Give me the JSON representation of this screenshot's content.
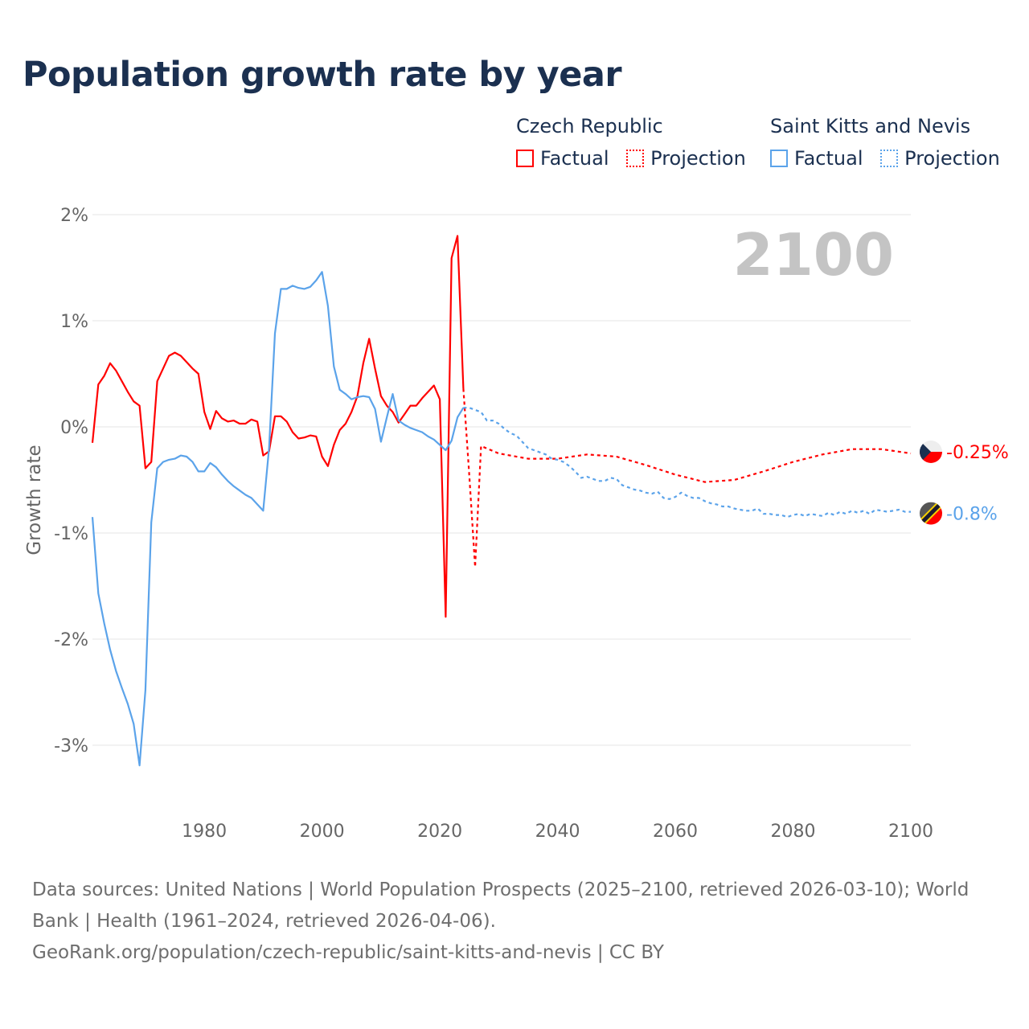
{
  "title": "Population growth rate by year",
  "legend": {
    "groups": [
      {
        "name": "Czech Republic",
        "factual": "Factual",
        "projection": "Projection",
        "color": "#ff0000"
      },
      {
        "name": "Saint Kitts and Nevis",
        "factual": "Factual",
        "projection": "Projection",
        "color": "#5ba3ea"
      }
    ]
  },
  "year_display": "2100",
  "footer": {
    "sources": "Data sources: United Nations | World Population Prospects (2025–2100, retrieved 2026-03-10); World Bank | Health (1961–2024, retrieved 2026-04-06).",
    "credit": "GeoRank.org/population/czech-republic/saint-kitts-and-nevis | CC BY"
  },
  "chart_data": {
    "type": "line",
    "title": "Population growth rate by year",
    "xlabel": "",
    "ylabel": "Growth rate",
    "xlim": [
      1961,
      2100
    ],
    "ylim": [
      -3.6,
      2.1
    ],
    "x_ticks": [
      1980,
      2000,
      2020,
      2040,
      2060,
      2080,
      2100
    ],
    "x_tick_labels": [
      "1980",
      "2000",
      "2020",
      "2040",
      "2060",
      "2080",
      "2100"
    ],
    "y_ticks": [
      2,
      1,
      0,
      -1,
      -2,
      -3
    ],
    "y_tick_labels": [
      "2%",
      "1%",
      "0%",
      "-1%",
      "-2%",
      "-3%"
    ],
    "grid": true,
    "legend_position": "top-right",
    "end_labels": [
      {
        "series": "Czech Republic",
        "label": "-0.25%",
        "value": -0.25
      },
      {
        "series": "Saint Kitts and Nevis",
        "label": "-0.8%",
        "value": -0.8
      }
    ],
    "series": [
      {
        "name": "Czech Republic - Factual",
        "color": "#ff0000",
        "style": "solid",
        "x_start": 1961,
        "values": [
          -0.15,
          0.4,
          0.48,
          0.6,
          0.53,
          0.43,
          0.33,
          0.24,
          0.2,
          -0.39,
          -0.33,
          0.43,
          0.55,
          0.67,
          0.7,
          0.67,
          0.61,
          0.55,
          0.5,
          0.14,
          -0.02,
          0.15,
          0.08,
          0.05,
          0.06,
          0.03,
          0.03,
          0.07,
          0.05,
          -0.27,
          -0.23,
          0.1,
          0.1,
          0.05,
          -0.05,
          -0.11,
          -0.1,
          -0.08,
          -0.09,
          -0.28,
          -0.37,
          -0.17,
          -0.03,
          0.03,
          0.14,
          0.29,
          0.6,
          0.83,
          0.55,
          0.29,
          0.2,
          0.14,
          0.04,
          0.12,
          0.2,
          0.2,
          0.27,
          0.33,
          0.39,
          0.26,
          -1.79,
          1.59,
          1.8,
          0.36
        ]
      },
      {
        "name": "Czech Republic - Projection",
        "color": "#ff0000",
        "style": "dotted",
        "x": [
          2024,
          2025,
          2026,
          2027,
          2030,
          2035,
          2040,
          2045,
          2050,
          2055,
          2060,
          2065,
          2070,
          2075,
          2080,
          2085,
          2090,
          2095,
          2100
        ],
        "values": [
          0.36,
          -0.45,
          -1.32,
          -0.18,
          -0.25,
          -0.3,
          -0.3,
          -0.26,
          -0.28,
          -0.36,
          -0.45,
          -0.52,
          -0.5,
          -0.42,
          -0.33,
          -0.26,
          -0.21,
          -0.21,
          -0.25
        ]
      },
      {
        "name": "Saint Kitts and Nevis - Factual",
        "color": "#5ba3ea",
        "style": "solid",
        "x_start": 1961,
        "values": [
          -0.85,
          -1.57,
          -1.85,
          -2.1,
          -2.3,
          -2.46,
          -2.61,
          -2.8,
          -3.19,
          -2.48,
          -0.9,
          -0.39,
          -0.33,
          -0.31,
          -0.3,
          -0.27,
          -0.28,
          -0.33,
          -0.42,
          -0.42,
          -0.34,
          -0.38,
          -0.45,
          -0.51,
          -0.56,
          -0.6,
          -0.64,
          -0.67,
          -0.73,
          -0.79,
          -0.2,
          0.88,
          1.3,
          1.3,
          1.33,
          1.31,
          1.3,
          1.32,
          1.38,
          1.46,
          1.14,
          0.57,
          0.35,
          0.31,
          0.26,
          0.28,
          0.29,
          0.28,
          0.17,
          -0.14,
          0.09,
          0.31,
          0.06,
          0.02,
          -0.01,
          -0.03,
          -0.05,
          -0.09,
          -0.12,
          -0.17,
          -0.22,
          -0.13,
          0.09,
          0.18
        ]
      },
      {
        "name": "Saint Kitts and Nevis - Projection",
        "color": "#5ba3ea",
        "style": "dotted",
        "x_start": 2024,
        "values": [
          0.18,
          0.18,
          0.16,
          0.14,
          0.06,
          0.06,
          0.03,
          -0.02,
          -0.06,
          -0.08,
          -0.14,
          -0.2,
          -0.22,
          -0.24,
          -0.26,
          -0.3,
          -0.31,
          -0.33,
          -0.37,
          -0.42,
          -0.48,
          -0.47,
          -0.49,
          -0.51,
          -0.51,
          -0.48,
          -0.49,
          -0.55,
          -0.57,
          -0.59,
          -0.6,
          -0.62,
          -0.63,
          -0.61,
          -0.67,
          -0.68,
          -0.66,
          -0.62,
          -0.65,
          -0.67,
          -0.67,
          -0.7,
          -0.72,
          -0.73,
          -0.75,
          -0.75,
          -0.77,
          -0.78,
          -0.79,
          -0.79,
          -0.77,
          -0.82,
          -0.82,
          -0.83,
          -0.83,
          -0.85,
          -0.83,
          -0.82,
          -0.84,
          -0.82,
          -0.83,
          -0.84,
          -0.81,
          -0.83,
          -0.8,
          -0.82,
          -0.79,
          -0.81,
          -0.79,
          -0.82,
          -0.78,
          -0.79,
          -0.8,
          -0.79,
          -0.78,
          -0.8,
          -0.8
        ]
      }
    ]
  }
}
